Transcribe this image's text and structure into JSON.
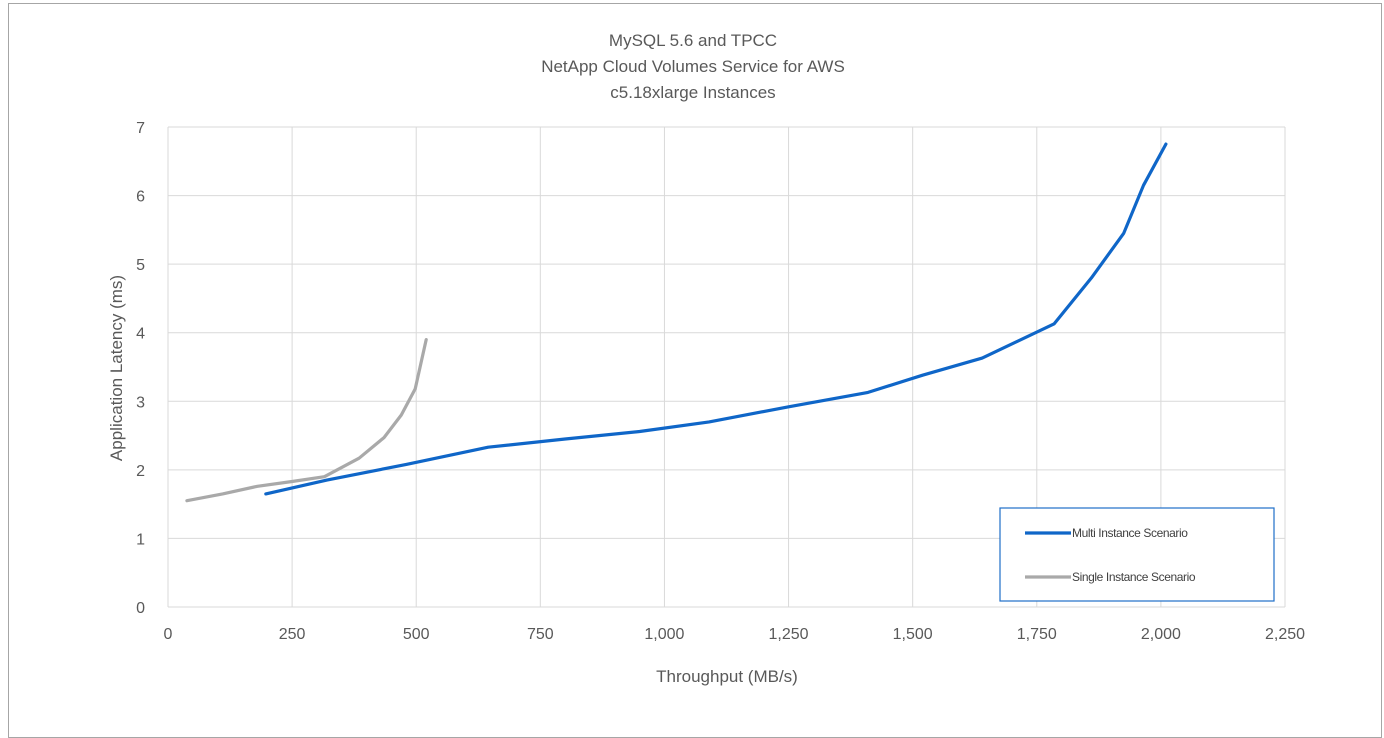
{
  "chart_data": {
    "type": "line",
    "title": [
      "MySQL 5.6 and TPCC",
      "NetApp Cloud Volumes Service for AWS",
      "c5.18xlarge Instances"
    ],
    "xlabel": "Throughput (MB/s)",
    "ylabel": "Application Latency (ms)",
    "xlim": [
      0,
      2250
    ],
    "ylim": [
      0,
      7
    ],
    "x_ticks": [
      0,
      250,
      500,
      750,
      1000,
      1250,
      1500,
      1750,
      2000,
      2250
    ],
    "x_tick_labels": [
      "0",
      "250",
      "500",
      "750",
      "1,000",
      "1,250",
      "1,500",
      "1,750",
      "2,000",
      "2,250"
    ],
    "y_ticks": [
      0,
      1,
      2,
      3,
      4,
      5,
      6,
      7
    ],
    "y_tick_labels": [
      "0",
      "1",
      "2",
      "3",
      "4",
      "5",
      "6",
      "7"
    ],
    "grid": "vertical and horizontal",
    "legend_position": "bottom-right",
    "series": [
      {
        "name": "Multi Instance Scenario",
        "color": "#0f66c8",
        "points": [
          [
            197,
            1.65
          ],
          [
            320,
            1.85
          ],
          [
            480,
            2.08
          ],
          [
            645,
            2.33
          ],
          [
            800,
            2.45
          ],
          [
            950,
            2.56
          ],
          [
            1090,
            2.7
          ],
          [
            1250,
            2.92
          ],
          [
            1410,
            3.13
          ],
          [
            1520,
            3.38
          ],
          [
            1640,
            3.63
          ],
          [
            1785,
            4.13
          ],
          [
            1860,
            4.8
          ],
          [
            1925,
            5.45
          ],
          [
            1965,
            6.15
          ],
          [
            2010,
            6.75
          ]
        ]
      },
      {
        "name": "Single Instance Scenario",
        "color": "#a9a9a9",
        "points": [
          [
            38,
            1.55
          ],
          [
            110,
            1.65
          ],
          [
            180,
            1.76
          ],
          [
            250,
            1.83
          ],
          [
            315,
            1.9
          ],
          [
            385,
            2.17
          ],
          [
            435,
            2.47
          ],
          [
            470,
            2.8
          ],
          [
            498,
            3.18
          ],
          [
            520,
            3.9
          ]
        ]
      }
    ]
  }
}
